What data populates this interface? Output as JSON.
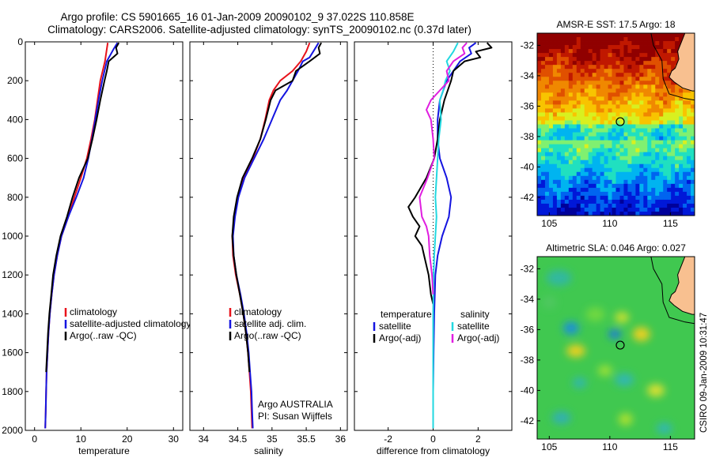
{
  "header": {
    "line1": "Argo profile: CS 5901665_16 01-Jan-2009 20090102_9 37.022S 110.858E",
    "line2": "Climatology: CARS2006. Satellite-adjusted climatology: synTS_20090102.nc (0.37d later)"
  },
  "credit": {
    "line1": "Argo AUSTRALIA",
    "line2": "PI: Susan Wijffels",
    "stamp": "CSIRO 09-Jan-2009 10:31:47"
  },
  "colors": {
    "climatology": "#e8121b",
    "satellite": "#1414e0",
    "argo": "#000000",
    "sal_satellite": "#22d8e0",
    "sal_argo": "#e01ee0",
    "land": "#f8c090"
  },
  "chart_data": [
    {
      "id": "temperature",
      "type": "line",
      "xlabel": "temperature",
      "ylabel": "",
      "xlim": [
        -2,
        32
      ],
      "ylim": [
        2000,
        0
      ],
      "xticks": [
        0,
        10,
        20,
        30
      ],
      "yticks": [
        0,
        200,
        400,
        600,
        800,
        1000,
        1200,
        1400,
        1600,
        1800,
        2000
      ],
      "legend": [
        "climatology",
        "satellite-adjusted climatology",
        "Argo(..raw -QC)"
      ],
      "series": [
        {
          "name": "climatology",
          "color": "#e8121b",
          "depth": [
            5,
            100,
            200,
            300,
            400,
            500,
            600,
            700,
            800,
            900,
            1000,
            1100,
            1200,
            1300,
            1400,
            1500,
            1600,
            1700,
            1800,
            1900,
            1990
          ],
          "values": [
            15.8,
            15.2,
            14.2,
            13.6,
            13.0,
            12.2,
            11.3,
            10.0,
            8.6,
            7.3,
            5.8,
            4.9,
            4.2,
            3.7,
            3.3,
            3.0,
            2.8,
            2.6,
            2.5,
            2.4,
            2.3
          ]
        },
        {
          "name": "satellite-adjusted climatology",
          "color": "#1414e0",
          "depth": [
            5,
            40,
            100,
            200,
            300,
            400,
            500,
            600,
            700,
            800,
            900,
            1000,
            1100,
            1200,
            1300,
            1400,
            1500,
            1600,
            1700,
            1800,
            1900,
            1990
          ],
          "values": [
            17.9,
            17.0,
            15.6,
            14.6,
            13.8,
            13.1,
            12.4,
            11.6,
            10.6,
            9.0,
            7.3,
            5.8,
            4.9,
            4.2,
            3.7,
            3.3,
            3.0,
            2.8,
            2.6,
            2.5,
            2.4,
            2.3
          ]
        },
        {
          "name": "Argo(..raw -QC)",
          "color": "#000000",
          "depth": [
            5,
            30,
            60,
            100,
            150,
            200,
            300,
            400,
            500,
            600,
            700,
            800,
            900,
            1000,
            1100,
            1200,
            1300,
            1400,
            1500,
            1600,
            1700
          ],
          "values": [
            18.2,
            17.6,
            17.9,
            16.0,
            15.6,
            15.1,
            14.2,
            13.4,
            12.5,
            11.5,
            9.6,
            8.2,
            7.0,
            5.6,
            4.7,
            4.0,
            3.6,
            3.2,
            2.9,
            2.7,
            2.5
          ]
        }
      ]
    },
    {
      "id": "salinity",
      "type": "line",
      "xlabel": "salinity",
      "ylabel": "",
      "xlim": [
        33.8,
        36.1
      ],
      "ylim": [
        2000,
        0
      ],
      "xticks": [
        34,
        34.5,
        35,
        35.5,
        36
      ],
      "xticklabels": [
        "34",
        "34.5",
        "35",
        "35.5",
        "36"
      ],
      "yticks": [
        0,
        200,
        400,
        600,
        800,
        1000,
        1200,
        1400,
        1600,
        1800,
        2000
      ],
      "legend": [
        "climatology",
        "satellite adj. clim.",
        "Argo(..raw -QC)"
      ],
      "series": [
        {
          "name": "climatology",
          "color": "#e8121b",
          "depth": [
            5,
            50,
            100,
            150,
            200,
            250,
            300,
            400,
            500,
            600,
            700,
            800,
            900,
            1000,
            1100,
            1200,
            1300,
            1400,
            1500,
            1600,
            1700,
            1800,
            1900,
            1990
          ],
          "values": [
            35.55,
            35.5,
            35.42,
            35.3,
            35.12,
            35.02,
            34.96,
            34.9,
            34.83,
            34.72,
            34.58,
            34.5,
            34.45,
            34.42,
            34.43,
            34.47,
            34.53,
            34.58,
            34.62,
            34.65,
            34.67,
            34.69,
            34.7,
            34.71
          ]
        },
        {
          "name": "satellite adj. clim.",
          "color": "#1414e0",
          "depth": [
            5,
            40,
            80,
            100,
            150,
            200,
            250,
            300,
            400,
            500,
            600,
            700,
            800,
            900,
            1000,
            1100,
            1200,
            1300,
            1400,
            1500,
            1600,
            1700,
            1800,
            1900,
            1990
          ],
          "values": [
            35.68,
            35.62,
            35.55,
            35.45,
            35.38,
            35.3,
            35.22,
            35.12,
            35.0,
            34.88,
            34.74,
            34.6,
            34.51,
            34.46,
            34.43,
            34.44,
            34.48,
            34.54,
            34.59,
            34.63,
            34.66,
            34.68,
            34.7,
            34.71,
            34.72
          ]
        },
        {
          "name": "Argo(..raw -QC)",
          "color": "#000000",
          "depth": [
            5,
            30,
            60,
            100,
            150,
            200,
            250,
            300,
            400,
            500,
            600,
            700,
            800,
            900,
            1000,
            1100,
            1200,
            1300,
            1400,
            1500,
            1600,
            1700
          ],
          "values": [
            35.72,
            35.68,
            35.7,
            35.55,
            35.35,
            35.3,
            35.05,
            34.98,
            34.91,
            34.83,
            34.71,
            34.57,
            34.49,
            34.44,
            34.42,
            34.44,
            34.48,
            34.53,
            34.58,
            34.62,
            34.65,
            34.67
          ]
        }
      ]
    },
    {
      "id": "difference",
      "type": "line",
      "xlabel": "difference from climatology",
      "ylabel": "",
      "xlim": [
        -3.5,
        3.5
      ],
      "ylim": [
        2000,
        0
      ],
      "xticks": [
        -2,
        0,
        2
      ],
      "yticks": [
        0,
        200,
        400,
        600,
        800,
        1000,
        1200,
        1400,
        1600,
        1800,
        2000
      ],
      "legend_groups": [
        {
          "title": "temperature",
          "entries": [
            "satellite",
            "Argo(-adj)"
          ]
        },
        {
          "title": "salinity",
          "entries": [
            "satellite",
            "Argo(-adj)"
          ]
        }
      ],
      "series": [
        {
          "name": "satellite",
          "group": "temperature",
          "color": "#1414e0",
          "depth": [
            5,
            30,
            60,
            100,
            200,
            300,
            400,
            500,
            600,
            700,
            800,
            900,
            1000,
            1100,
            1200,
            1400,
            1600,
            1800,
            1990
          ],
          "values": [
            1.9,
            1.6,
            1.7,
            1.2,
            0.6,
            0.3,
            0.2,
            0.2,
            0.3,
            0.6,
            0.8,
            0.7,
            0.4,
            0.2,
            0.1,
            0.05,
            0.02,
            0.0,
            0.0
          ]
        },
        {
          "name": "Argo(-adj)",
          "group": "temperature",
          "color": "#000000",
          "depth": [
            5,
            30,
            50,
            80,
            100,
            150,
            200,
            300,
            400,
            500,
            600,
            700,
            800,
            850,
            900,
            950,
            1000,
            1050,
            1100,
            1200,
            1300,
            1350
          ],
          "values": [
            2.4,
            2.6,
            1.9,
            2.1,
            1.4,
            0.9,
            0.8,
            0.5,
            0.3,
            0.2,
            0.05,
            -0.3,
            -0.8,
            -1.1,
            -0.9,
            -0.6,
            -0.8,
            -0.5,
            -0.4,
            -0.2,
            -0.1,
            0.0
          ]
        },
        {
          "name": "satellite",
          "group": "salinity",
          "color": "#22d8e0",
          "depth": [
            5,
            50,
            100,
            150,
            200,
            250,
            300,
            400,
            500,
            600,
            700,
            800,
            900,
            1000,
            1100,
            1200,
            1400,
            1600,
            1800,
            1990
          ],
          "values": [
            1.1,
            0.9,
            0.6,
            0.75,
            0.55,
            0.45,
            0.3,
            0.35,
            0.25,
            0.2,
            0.15,
            0.1,
            0.15,
            0.1,
            0.05,
            0.02,
            0.0,
            0.0,
            0.0,
            0.0
          ]
        },
        {
          "name": "Argo(-adj)",
          "group": "salinity",
          "color": "#e01ee0",
          "depth": [
            5,
            30,
            60,
            100,
            150,
            200,
            250,
            300,
            350,
            400,
            500,
            600,
            700,
            800,
            900,
            950,
            1000,
            1100,
            1200,
            1300
          ],
          "values": [
            1.5,
            1.3,
            1.4,
            0.9,
            0.6,
            0.7,
            0.3,
            -0.1,
            -0.3,
            -0.1,
            0.0,
            0.05,
            -0.25,
            -0.6,
            -0.5,
            -0.3,
            -0.2,
            -0.15,
            -0.05,
            0.0
          ]
        }
      ]
    },
    {
      "id": "sst-map",
      "type": "heatmap",
      "title": "AMSR-E SST: 17.5 Argo: 18",
      "xlim": [
        104,
        117
      ],
      "ylim": [
        -43.2,
        -31.2
      ],
      "xticks": [
        105,
        110,
        115
      ],
      "yticks": [
        -32,
        -34,
        -36,
        -38,
        -40,
        -42
      ],
      "argo_position": [
        110.858,
        -37.022
      ],
      "palette": [
        "#00009a",
        "#0018d8",
        "#0064f0",
        "#00b4f0",
        "#20e0c0",
        "#80f070",
        "#d8f020",
        "#f8c400",
        "#f08800",
        "#e05000",
        "#c01800",
        "#900000"
      ]
    },
    {
      "id": "sla-map",
      "type": "heatmap",
      "title": "Altimetric SLA: 0.046 Argo: 0.027",
      "xlim": [
        104,
        117
      ],
      "ylim": [
        -43.2,
        -31.2
      ],
      "xticks": [
        105,
        110,
        115
      ],
      "yticks": [
        -32,
        -34,
        -36,
        -38,
        -40,
        -42
      ],
      "argo_position": [
        110.858,
        -37.022
      ]
    }
  ]
}
